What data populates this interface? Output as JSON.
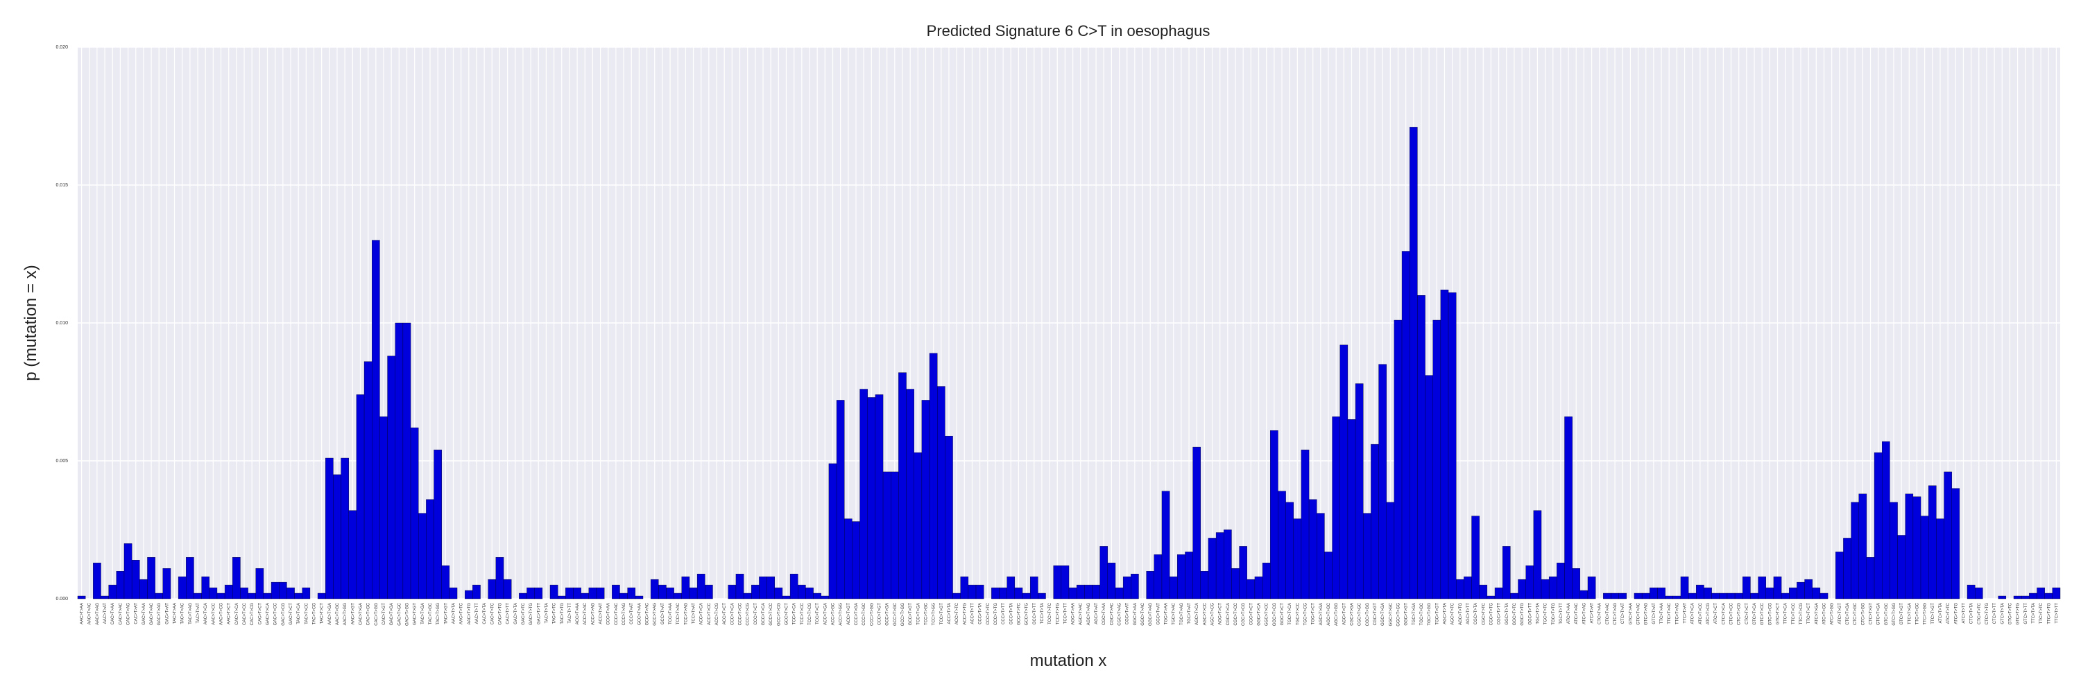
{
  "chart_data": {
    "type": "bar",
    "title": "Predicted Signature 6 C>T in oesophagus",
    "xlabel": "mutation x",
    "ylabel": "p (mutation = x)",
    "ylim": [
      0,
      0.02
    ],
    "yticks": [
      "0.000",
      "0.005",
      "0.010",
      "0.015",
      "0.020"
    ],
    "grid": true,
    "colors": {
      "bar": "#0000dd",
      "plot_bg": "#eaeaf2",
      "grid": "#ffffff"
    },
    "categories": [
      "AAC>T>AA",
      "AAC>T>AC",
      "AAC>T>AG",
      "AAC>T>AT",
      "CAC>T>AA",
      "CAC>T>AC",
      "CAC>T>AG",
      "CAC>T>AT",
      "GAC>T>AA",
      "GAC>T>AC",
      "GAC>T>AG",
      "GAC>T>AT",
      "TAC>T>AA",
      "TAC>T>AC",
      "TAC>T>AG",
      "TAC>T>AT",
      "AAC>T>CA",
      "AAC>T>CC",
      "AAC>T>CG",
      "AAC>T>CT",
      "CAC>T>CA",
      "CAC>T>CC",
      "CAC>T>CG",
      "CAC>T>CT",
      "GAC>T>CA",
      "GAC>T>CC",
      "GAC>T>CG",
      "GAC>T>CT",
      "TAC>T>CA",
      "TAC>T>CC",
      "TAC>T>CG",
      "TAC>T>CT",
      "AAC>T>GA",
      "AAC>T>GC",
      "AAC>T>GG",
      "AAC>T>GT",
      "CAC>T>GA",
      "CAC>T>GC",
      "CAC>T>GG",
      "CAC>T>GT",
      "GAC>T>GA",
      "GAC>T>GC",
      "GAC>T>GG",
      "GAC>T>GT",
      "TAC>T>GA",
      "TAC>T>GC",
      "TAC>T>GG",
      "TAC>T>GT",
      "AAC>T>TA",
      "AAC>T>TC",
      "AAC>T>TG",
      "AAC>T>TT",
      "CAC>T>TA",
      "CAC>T>TC",
      "CAC>T>TG",
      "CAC>T>TT",
      "GAC>T>TA",
      "GAC>T>TC",
      "GAC>T>TG",
      "GAC>T>TT",
      "TAC>T>TA",
      "TAC>T>TC",
      "TAC>T>TG",
      "TAC>T>TT",
      "ACC>T>AA",
      "ACC>T>AC",
      "ACC>T>AG",
      "ACC>T>AT",
      "CCC>T>AA",
      "CCC>T>AC",
      "CCC>T>AG",
      "CCC>T>AT",
      "GCC>T>AA",
      "GCC>T>AC",
      "GCC>T>AG",
      "GCC>T>AT",
      "TCC>T>AA",
      "TCC>T>AC",
      "TCC>T>AG",
      "TCC>T>AT",
      "ACC>T>CA",
      "ACC>T>CC",
      "ACC>T>CG",
      "ACC>T>CT",
      "CCC>T>CA",
      "CCC>T>CC",
      "CCC>T>CG",
      "CCC>T>CT",
      "GCC>T>CA",
      "GCC>T>CC",
      "GCC>T>CG",
      "GCC>T>CT",
      "TCC>T>CA",
      "TCC>T>CC",
      "TCC>T>CG",
      "TCC>T>CT",
      "ACC>T>GA",
      "ACC>T>GC",
      "ACC>T>GG",
      "ACC>T>GT",
      "CCC>T>GA",
      "CCC>T>GC",
      "CCC>T>GG",
      "CCC>T>GT",
      "GCC>T>GA",
      "GCC>T>GC",
      "GCC>T>GG",
      "GCC>T>GT",
      "TCC>T>GA",
      "TCC>T>GC",
      "TCC>T>GG",
      "TCC>T>GT",
      "ACC>T>TA",
      "ACC>T>TC",
      "ACC>T>TG",
      "ACC>T>TT",
      "CCC>T>TA",
      "CCC>T>TC",
      "CCC>T>TG",
      "CCC>T>TT",
      "GCC>T>TA",
      "GCC>T>TC",
      "GCC>T>TG",
      "GCC>T>TT",
      "TCC>T>TA",
      "TCC>T>TC",
      "TCC>T>TG",
      "TCC>T>TT",
      "AGC>T>AA",
      "AGC>T>AC",
      "AGC>T>AG",
      "AGC>T>AT",
      "CGC>T>AA",
      "CGC>T>AC",
      "CGC>T>AG",
      "CGC>T>AT",
      "GGC>T>AA",
      "GGC>T>AC",
      "GGC>T>AG",
      "GGC>T>AT",
      "TGC>T>AA",
      "TGC>T>AC",
      "TGC>T>AG",
      "TGC>T>AT",
      "AGC>T>CA",
      "AGC>T>CC",
      "AGC>T>CG",
      "AGC>T>CT",
      "CGC>T>CA",
      "CGC>T>CC",
      "CGC>T>CG",
      "CGC>T>CT",
      "GGC>T>CA",
      "GGC>T>CC",
      "GGC>T>CG",
      "GGC>T>CT",
      "TGC>T>CA",
      "TGC>T>CC",
      "TGC>T>CG",
      "TGC>T>CT",
      "AGC>T>GA",
      "AGC>T>GC",
      "AGC>T>GG",
      "AGC>T>GT",
      "CGC>T>GA",
      "CGC>T>GC",
      "CGC>T>GG",
      "CGC>T>GT",
      "GGC>T>GA",
      "GGC>T>GC",
      "GGC>T>GG",
      "GGC>T>GT",
      "TGC>T>GA",
      "TGC>T>GC",
      "TGC>T>GG",
      "TGC>T>GT",
      "AGC>T>TA",
      "AGC>T>TC",
      "AGC>T>TG",
      "AGC>T>TT",
      "CGC>T>TA",
      "CGC>T>TC",
      "CGC>T>TG",
      "CGC>T>TT",
      "GGC>T>TA",
      "GGC>T>TC",
      "GGC>T>TG",
      "GGC>T>TT",
      "TGC>T>TA",
      "TGC>T>TC",
      "TGC>T>TG",
      "TGC>T>TT",
      "ATC>T>AA",
      "ATC>T>AC",
      "ATC>T>AG",
      "ATC>T>AT",
      "CTC>T>AA",
      "CTC>T>AC",
      "CTC>T>AG",
      "CTC>T>AT",
      "GTC>T>AA",
      "GTC>T>AC",
      "GTC>T>AG",
      "GTC>T>AT",
      "TTC>T>AA",
      "TTC>T>AC",
      "TTC>T>AG",
      "TTC>T>AT",
      "ATC>T>CA",
      "ATC>T>CC",
      "ATC>T>CG",
      "ATC>T>CT",
      "CTC>T>CA",
      "CTC>T>CC",
      "CTC>T>CG",
      "CTC>T>CT",
      "GTC>T>CA",
      "GTC>T>CC",
      "GTC>T>CG",
      "GTC>T>CT",
      "TTC>T>CA",
      "TTC>T>CC",
      "TTC>T>CG",
      "TTC>T>CT",
      "ATC>T>GA",
      "ATC>T>GC",
      "ATC>T>GG",
      "ATC>T>GT",
      "CTC>T>GA",
      "CTC>T>GC",
      "CTC>T>GG",
      "CTC>T>GT",
      "GTC>T>GA",
      "GTC>T>GC",
      "GTC>T>GG",
      "GTC>T>GT",
      "TTC>T>GA",
      "TTC>T>GC",
      "TTC>T>GG",
      "TTC>T>GT",
      "ATC>T>TA",
      "ATC>T>TC",
      "ATC>T>TG",
      "ATC>T>TT",
      "CTC>T>TA",
      "CTC>T>TC",
      "CTC>T>TG",
      "CTC>T>TT",
      "GTC>T>TA",
      "GTC>T>TC",
      "GTC>T>TG",
      "GTC>T>TT",
      "TTC>T>TA",
      "TTC>T>TC",
      "TTC>T>TG",
      "TTC>T>TT"
    ],
    "values": [
      0.0001,
      0.0,
      0.0013,
      0.0001,
      0.0005,
      0.001,
      0.002,
      0.0014,
      0.0007,
      0.0015,
      0.0002,
      0.0011,
      0.0,
      0.0008,
      0.0015,
      0.0002,
      0.0008,
      0.0004,
      0.0002,
      0.0005,
      0.0015,
      0.0004,
      0.0002,
      0.0011,
      0.0002,
      0.0006,
      0.0006,
      0.0004,
      0.0002,
      0.0004,
      0.0,
      0.0002,
      0.0051,
      0.0045,
      0.0051,
      0.0032,
      0.0074,
      0.0086,
      0.013,
      0.0066,
      0.0088,
      0.01,
      0.01,
      0.0062,
      0.0031,
      0.0036,
      0.0054,
      0.0012,
      0.0004,
      0.0,
      0.0003,
      0.0005,
      0.0,
      0.0007,
      0.0015,
      0.0007,
      0.0,
      0.0002,
      0.0004,
      0.0004,
      0.0,
      0.0005,
      0.0001,
      0.0004,
      0.0004,
      0.0002,
      0.0004,
      0.0004,
      0.0,
      0.0005,
      0.0002,
      0.0004,
      0.0001,
      0.0,
      0.0007,
      0.0005,
      0.0004,
      0.0002,
      0.0008,
      0.0004,
      0.0009,
      0.0005,
      0.0,
      0.0,
      0.0005,
      0.0009,
      0.0002,
      0.0005,
      0.0008,
      0.0008,
      0.0004,
      0.0001,
      0.0009,
      0.0005,
      0.0004,
      0.0002,
      0.0001,
      0.0049,
      0.0072,
      0.0029,
      0.0028,
      0.0076,
      0.0073,
      0.0074,
      0.0046,
      0.0046,
      0.0082,
      0.0076,
      0.0053,
      0.0072,
      0.0089,
      0.0077,
      0.0059,
      0.0002,
      0.0008,
      0.0005,
      0.0005,
      0.0,
      0.0004,
      0.0004,
      0.0008,
      0.0004,
      0.0002,
      0.0008,
      0.0002,
      0.0,
      0.0012,
      0.0012,
      0.0004,
      0.0005,
      0.0005,
      0.0005,
      0.0019,
      0.0013,
      0.0004,
      0.0008,
      0.0009,
      0.0,
      0.001,
      0.0016,
      0.0039,
      0.0008,
      0.0016,
      0.0017,
      0.0055,
      0.001,
      0.0022,
      0.0024,
      0.0025,
      0.0011,
      0.0019,
      0.0007,
      0.0008,
      0.0013,
      0.0061,
      0.0039,
      0.0035,
      0.0029,
      0.0054,
      0.0036,
      0.0031,
      0.0017,
      0.0066,
      0.0092,
      0.0065,
      0.0078,
      0.0031,
      0.0056,
      0.0085,
      0.0035,
      0.0101,
      0.0126,
      0.0171,
      0.011,
      0.0081,
      0.0101,
      0.0112,
      0.0111,
      0.0007,
      0.0008,
      0.003,
      0.0005,
      0.0001,
      0.0004,
      0.0019,
      0.0002,
      0.0007,
      0.0012,
      0.0032,
      0.0007,
      0.0008,
      0.0013,
      0.0066,
      0.0011,
      0.0003,
      0.0008,
      0.0,
      0.0002,
      0.0002,
      0.0002,
      0.0,
      0.0002,
      0.0002,
      0.0004,
      0.0004,
      0.0001,
      0.0001,
      0.0008,
      0.0002,
      0.0005,
      0.0004,
      0.0002,
      0.0002,
      0.0002,
      0.0002,
      0.0008,
      0.0002,
      0.0008,
      0.0004,
      0.0008,
      0.0002,
      0.0004,
      0.0006,
      0.0007,
      0.0004,
      0.0002,
      0.0,
      0.0017,
      0.0022,
      0.0035,
      0.0038,
      0.0015,
      0.0053,
      0.0057,
      0.0035,
      0.0023,
      0.0038,
      0.0037,
      0.003,
      0.0041,
      0.0029,
      0.0046,
      0.004,
      0.0,
      0.0005,
      0.0004,
      0.0,
      0.0,
      0.0001,
      0.0,
      0.0001,
      0.0001,
      0.0002,
      0.0004,
      0.0002,
      0.0004
    ]
  }
}
